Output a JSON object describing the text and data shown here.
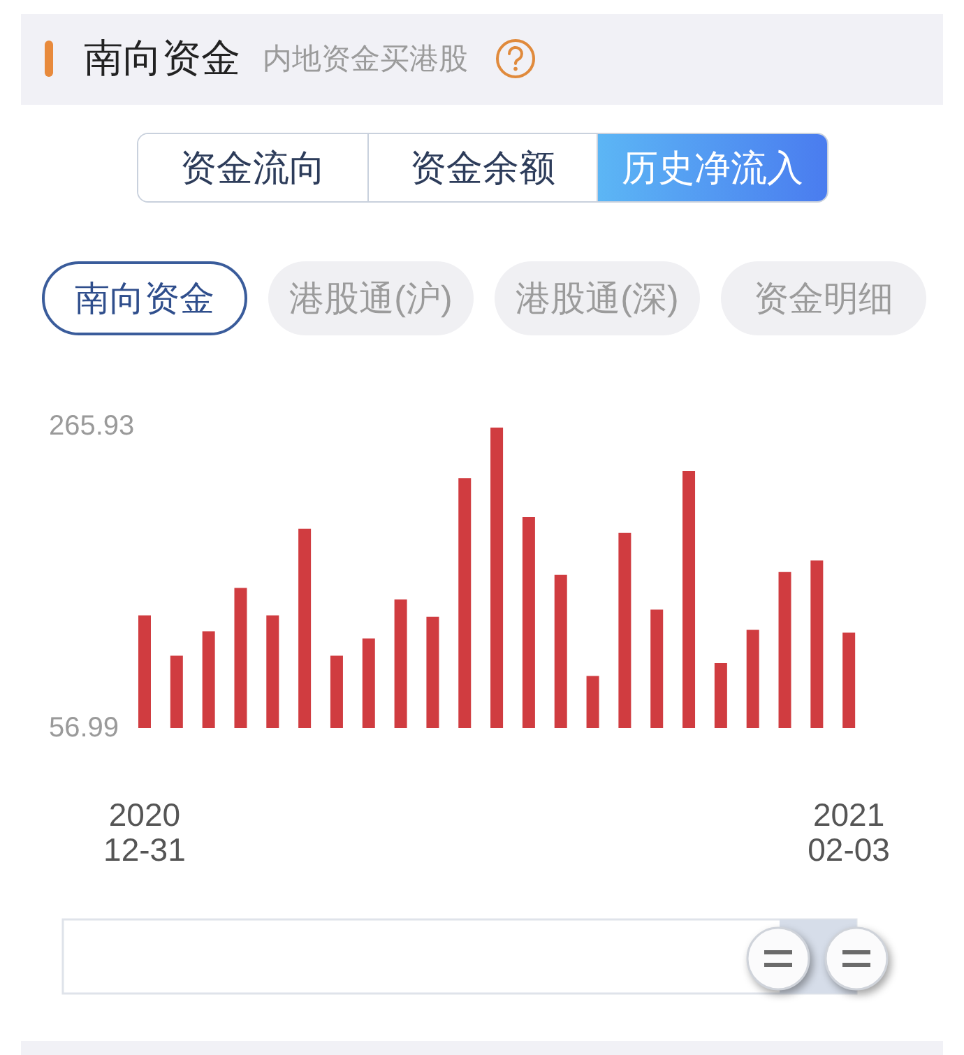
{
  "chart_data": {
    "type": "bar",
    "title": "南向资金",
    "subtitle": "内地资金买港股",
    "annotations": [
      "资金流向",
      "资金余额",
      "历史净流入",
      "南向资金",
      "港股通(沪)",
      "港股通(深)",
      "资金明细"
    ],
    "categories": [
      "2020\n12-31",
      null,
      null,
      null,
      null,
      null,
      null,
      null,
      null,
      null,
      null,
      null,
      null,
      null,
      null,
      null,
      null,
      null,
      null,
      null,
      null,
      null,
      "2021\n02-03"
    ],
    "values": [
      135,
      107,
      124,
      154,
      135,
      195,
      107,
      119,
      146,
      134,
      230,
      265,
      203,
      163,
      93,
      192,
      139,
      235,
      102,
      125,
      165,
      173,
      123
    ],
    "color": "#d03c40",
    "ylim": [
      56.99,
      265.93
    ],
    "yticks": [
      56.99,
      265.93
    ]
  }
}
